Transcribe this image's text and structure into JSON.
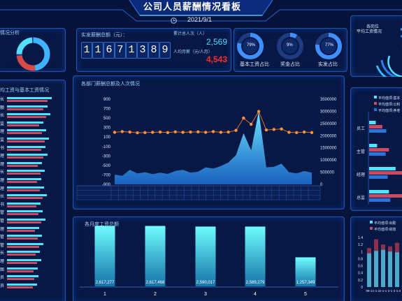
{
  "header": {
    "title": "公司人员薪酬情况看板",
    "date": "2021/9/1"
  },
  "left_top": {
    "title": "情况分析"
  },
  "kpi": {
    "total_label": "实发薪酬总额（元）：",
    "digits": [
      "1",
      "1",
      "6",
      "7",
      "1",
      "3",
      "8",
      "9"
    ],
    "people_label": "累计总人次（人）",
    "people_value": "2,569",
    "avg_label": "人均月薪（元/人月）",
    "avg_value": "4,543"
  },
  "ratios": [
    {
      "label": "基本工资占比",
      "value": "79%",
      "fraction": 0.79
    },
    {
      "label": "奖金占比",
      "value": "9%",
      "fraction": 0.09
    },
    {
      "label": "实发占比",
      "value": "77%",
      "fraction": 0.77
    }
  ],
  "right_top": {
    "line1": "各岗位",
    "line2": "平均工资情况"
  },
  "left_mid": {
    "title": "均工资与基本工资情况",
    "labels": [
      "长",
      "额",
      "长",
      "监",
      "理",
      "监",
      "书",
      "理",
      "理",
      "长",
      "理",
      "理",
      "长",
      "书",
      "管",
      "管",
      "理",
      "管",
      "管",
      "长",
      "理",
      "图",
      "员",
      "员"
    ]
  },
  "dept_chart": {
    "title": "各部门薪酬总额及人次情况"
  },
  "monthly": {
    "title": "各月度工资总额"
  },
  "right_mid": {
    "legend": [
      "平均值项:基本",
      "平均值项:公积",
      "平均值项:养老"
    ],
    "categories": [
      "员工",
      "主管",
      "经理",
      "总监"
    ]
  },
  "right_bottom": {
    "legend": [
      "平均值项:出勤",
      "平均值项:绩效"
    ]
  },
  "chart_data": [
    {
      "type": "area",
      "title": "各部门薪酬总额及人次情况",
      "left_axis_ticks": [
        "900",
        "700",
        "500",
        "300",
        "100",
        "-100",
        "-300",
        "-500",
        "-700",
        "-900"
      ],
      "right_axis_ticks": [
        "3500000",
        "3000000",
        "2500000",
        "2000000",
        "1500000",
        "1000000",
        "500000",
        "0"
      ],
      "ylim_left": [
        -900,
        900
      ],
      "ylim_right": [
        0,
        3500000
      ],
      "series": [
        {
          "name": "",
          "kind": "area",
          "values": [
            400000,
            350000,
            600000,
            450000,
            500000,
            420000,
            480000,
            430000,
            550000,
            600000,
            480000,
            520000,
            700000,
            650000,
            750000,
            900000,
            1200000,
            2100000,
            1400000,
            3000000,
            700000,
            720000,
            850000,
            500000,
            450000,
            550000,
            480000
          ]
        },
        {
          "name": "",
          "kind": "line",
          "values": [
            200,
            215,
            205,
            190,
            195,
            200,
            205,
            195,
            210,
            200,
            205,
            210,
            200,
            215,
            200,
            205,
            240,
            500,
            370,
            640,
            250,
            260,
            270,
            200,
            195,
            205,
            195
          ]
        }
      ]
    },
    {
      "type": "bar",
      "title": "各月度工资总额",
      "categories": [
        "1",
        "2",
        "3",
        "4",
        "5"
      ],
      "values": [
        2617277,
        2617468,
        2590017,
        2589279,
        1257349
      ],
      "value_labels": [
        "2,617,277",
        "2,617,468",
        "2,590,017",
        "2,589,279",
        "1,257,349"
      ],
      "ylim": [
        0,
        3000000
      ]
    },
    {
      "type": "bar",
      "orientation": "horizontal",
      "categories": [
        "员工",
        "主管",
        "经理",
        "总监"
      ],
      "series": [
        {
          "name": "平均值项:基本",
          "values": [
            1000,
            1200,
            4000,
            3000
          ]
        },
        {
          "name": "平均值项:公积",
          "values": [
            2000,
            3000,
            5000,
            5500
          ]
        },
        {
          "name": "平均值项:养老",
          "values": [
            2600,
            2500,
            2800,
            3200
          ]
        }
      ],
      "xlim": [
        0,
        5500
      ]
    },
    {
      "type": "bar",
      "categories": [
        "09-1",
        "1-1-1",
        "1-1-1",
        "2-1",
        "2-1-2"
      ],
      "yticks": [
        "1.4",
        "1.2",
        "1",
        "0.8",
        "0.6",
        "0.4",
        "0.2",
        "0"
      ],
      "series": [
        {
          "name": "平均值项:出勤",
          "values": [
            0.95,
            1.02,
            1.05,
            1.0,
            0.98
          ]
        },
        {
          "name": "平均值项:绩效",
          "values": [
            1.1,
            1.35,
            1.2,
            1.15,
            1.25
          ]
        }
      ],
      "ylim": [
        0,
        1.4
      ]
    }
  ]
}
